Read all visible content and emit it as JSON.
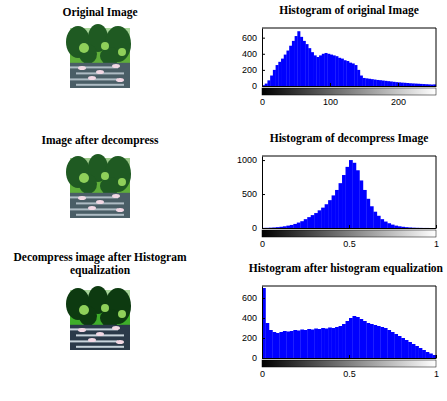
{
  "images": [
    {
      "title": "Original Image"
    },
    {
      "title": "Image after decompress"
    },
    {
      "title": "Decompress image after Histogram equalization"
    }
  ],
  "chart_data": [
    {
      "type": "histogram",
      "title": "Histogram of original Image",
      "color": "#0000ff",
      "bins": [
        0,
        4,
        8,
        12,
        16,
        20,
        24,
        28,
        32,
        36,
        40,
        44,
        48,
        52,
        56,
        60,
        64,
        68,
        72,
        76,
        80,
        84,
        88,
        92,
        96,
        100,
        104,
        108,
        112,
        116,
        120,
        124,
        128,
        132,
        136,
        140,
        144,
        148,
        152,
        156,
        160,
        164,
        168,
        172,
        176,
        180,
        184,
        188,
        192,
        196,
        200,
        204,
        208,
        212,
        216,
        220,
        224,
        228,
        232,
        236,
        240,
        244,
        248,
        252,
        256
      ],
      "counts": [
        10,
        30,
        70,
        130,
        200,
        260,
        300,
        340,
        390,
        440,
        500,
        560,
        620,
        680,
        610,
        560,
        520,
        470,
        420,
        380,
        360,
        380,
        400,
        410,
        400,
        390,
        380,
        370,
        350,
        340,
        320,
        310,
        290,
        280,
        260,
        200,
        130,
        100,
        95,
        90,
        85,
        80,
        75,
        72,
        68,
        64,
        60,
        56,
        52,
        48,
        45,
        42,
        40,
        37,
        34,
        32,
        30,
        28,
        26,
        24,
        22,
        20,
        18,
        20
      ],
      "xlim": [
        0,
        256
      ],
      "xticks": [
        0,
        100,
        200
      ],
      "ylim": [
        0,
        720
      ],
      "yticks": [
        0,
        200,
        400,
        600
      ],
      "grid": false
    },
    {
      "type": "histogram",
      "title": "Histogram of decompress Image",
      "color": "#0000ff",
      "bins": [
        0,
        0.02,
        0.04,
        0.06,
        0.08,
        0.1,
        0.12,
        0.14,
        0.16,
        0.18,
        0.2,
        0.22,
        0.24,
        0.26,
        0.28,
        0.3,
        0.32,
        0.34,
        0.36,
        0.38,
        0.4,
        0.42,
        0.44,
        0.46,
        0.48,
        0.5,
        0.52,
        0.54,
        0.56,
        0.58,
        0.6,
        0.62,
        0.64,
        0.66,
        0.68,
        0.7,
        0.72,
        0.74,
        0.76,
        0.78,
        0.8,
        0.82,
        0.84,
        0.86,
        0.88,
        0.9,
        0.92,
        0.94,
        0.96,
        0.98,
        1
      ],
      "counts": [
        2,
        3,
        5,
        8,
        12,
        18,
        25,
        35,
        45,
        60,
        80,
        100,
        130,
        160,
        190,
        220,
        260,
        300,
        350,
        410,
        480,
        560,
        660,
        780,
        900,
        1000,
        960,
        850,
        700,
        560,
        430,
        320,
        240,
        180,
        130,
        95,
        70,
        50,
        35,
        25,
        18,
        12,
        8,
        5,
        3,
        2,
        1,
        1,
        0,
        0
      ],
      "xlim": [
        0,
        1
      ],
      "xticks": [
        0,
        0.5,
        1
      ],
      "ylim": [
        0,
        1060
      ],
      "yticks": [
        0,
        500,
        1000
      ],
      "grid": false
    },
    {
      "type": "histogram",
      "title": "Histogram after histogram equalization",
      "color": "#0000ff",
      "bins": [
        0,
        0.02,
        0.04,
        0.06,
        0.08,
        0.1,
        0.12,
        0.14,
        0.16,
        0.18,
        0.2,
        0.22,
        0.24,
        0.26,
        0.28,
        0.3,
        0.32,
        0.34,
        0.36,
        0.38,
        0.4,
        0.42,
        0.44,
        0.46,
        0.48,
        0.5,
        0.52,
        0.54,
        0.56,
        0.58,
        0.6,
        0.62,
        0.64,
        0.66,
        0.68,
        0.7,
        0.72,
        0.74,
        0.76,
        0.78,
        0.8,
        0.82,
        0.84,
        0.86,
        0.88,
        0.9,
        0.92,
        0.94,
        0.96,
        0.98,
        1
      ],
      "counts": [
        700,
        350,
        280,
        260,
        250,
        260,
        270,
        265,
        270,
        280,
        275,
        285,
        280,
        290,
        285,
        295,
        290,
        300,
        295,
        305,
        300,
        310,
        320,
        340,
        370,
        400,
        420,
        410,
        390,
        370,
        350,
        340,
        330,
        320,
        310,
        300,
        280,
        260,
        240,
        220,
        200,
        180,
        160,
        140,
        120,
        100,
        80,
        60,
        45,
        30
      ],
      "xlim": [
        0,
        1
      ],
      "xticks": [
        0,
        0.5,
        1
      ],
      "ylim": [
        0,
        720
      ],
      "yticks": [
        0,
        200,
        400,
        600
      ],
      "grid": false
    }
  ]
}
